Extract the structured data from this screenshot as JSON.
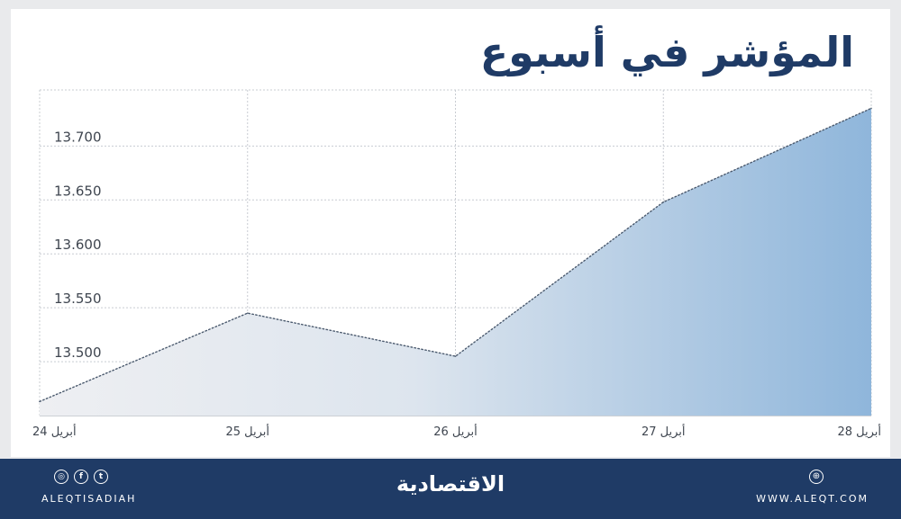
{
  "title": "المؤشر في أسبوع",
  "chart_data": {
    "type": "area",
    "x": [
      "24 أبريل",
      "25 أبريل",
      "26 أبريل",
      "27 أبريل",
      "28 أبريل"
    ],
    "values": [
      13463,
      13545,
      13505,
      13648,
      13735
    ],
    "ytick_labels": [
      "13.500",
      "13.550",
      "13.600",
      "13.650",
      "13.700"
    ],
    "yticks": [
      13500,
      13550,
      13600,
      13650,
      13700
    ],
    "ylim": [
      13450,
      13752
    ],
    "grid": true,
    "xlabel": "",
    "ylabel": ""
  },
  "colors": {
    "title": "#1f3b66",
    "footer": "#1f3b66",
    "area_light": "#eeeff2",
    "area_dark": "#8fb6db",
    "line": "#4b5a6e",
    "grid": "#c8ccd2"
  },
  "footer": {
    "social_icons": [
      "instagram-icon",
      "facebook-icon",
      "twitter-icon"
    ],
    "social_glyphs": [
      "◎",
      "f",
      "t"
    ],
    "handle": "ALEQTISADIAH",
    "brand": "الاقتصادية",
    "website_icon": "globe-icon",
    "website_glyph": "⊕",
    "website": "WWW.ALEQT.COM"
  }
}
